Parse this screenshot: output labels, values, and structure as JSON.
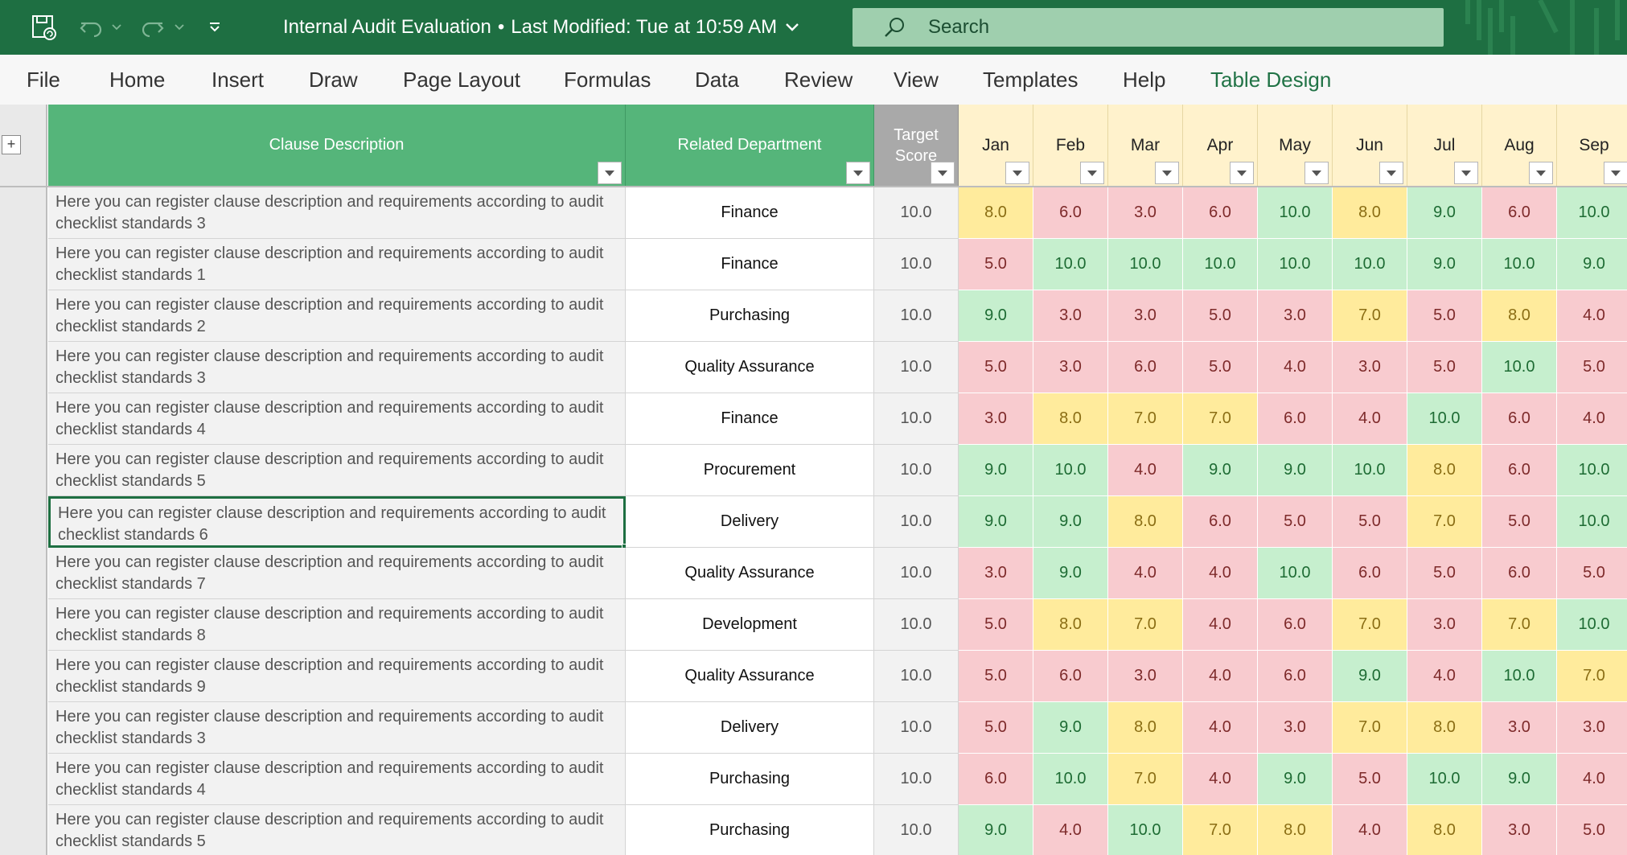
{
  "titlebar": {
    "document_title": "Internal Audit Evaluation",
    "separator": "•",
    "last_modified": "Last Modified: Tue at 10:59 AM",
    "search_placeholder": "Search",
    "icons": [
      "autosave-icon",
      "undo-icon",
      "redo-icon",
      "customize-toolbar-icon",
      "chevron-down-icon",
      "search-icon"
    ]
  },
  "menu": {
    "items": [
      "File",
      "Home",
      "Insert",
      "Draw",
      "Page Layout",
      "Formulas",
      "Data",
      "Review",
      "View",
      "Templates",
      "Help",
      "Table Design"
    ],
    "active": "Table Design"
  },
  "colors": {
    "brand": "#1e6f42",
    "header_green": "#55b57a",
    "header_grey": "#a9a9a9",
    "month_header": "#fff2cc",
    "score_red": "#f8cbcf",
    "score_yellow": "#ffeb9c",
    "score_green": "#c6efce"
  },
  "table": {
    "columns": {
      "description": "Clause Description",
      "department": "Related Department",
      "target": "Target Score",
      "months": [
        "Jan",
        "Feb",
        "Mar",
        "Apr",
        "May",
        "Jun",
        "Jul",
        "Aug",
        "Sep"
      ]
    },
    "expand_button": "+",
    "selected_row": 6,
    "rows": [
      {
        "description": "Here you can register clause description and requirements according to audit checklist standards 3",
        "department": "Finance",
        "target": "10.0",
        "scores": [
          "8.0",
          "6.0",
          "3.0",
          "6.0",
          "10.0",
          "8.0",
          "9.0",
          "6.0",
          "10.0"
        ]
      },
      {
        "description": "Here you can register clause description and requirements according to audit checklist standards 1",
        "department": "Finance",
        "target": "10.0",
        "scores": [
          "5.0",
          "10.0",
          "10.0",
          "10.0",
          "10.0",
          "10.0",
          "9.0",
          "10.0",
          "9.0"
        ]
      },
      {
        "description": "Here you can register clause description and requirements according to audit checklist standards 2",
        "department": "Purchasing",
        "target": "10.0",
        "scores": [
          "9.0",
          "3.0",
          "3.0",
          "5.0",
          "3.0",
          "7.0",
          "5.0",
          "8.0",
          "4.0"
        ]
      },
      {
        "description": "Here you can register clause description and requirements according to audit checklist standards 3",
        "department": "Quality Assurance",
        "target": "10.0",
        "scores": [
          "5.0",
          "3.0",
          "6.0",
          "5.0",
          "4.0",
          "3.0",
          "5.0",
          "10.0",
          "5.0"
        ]
      },
      {
        "description": "Here you can register clause description and requirements according to audit checklist standards 4",
        "department": "Finance",
        "target": "10.0",
        "scores": [
          "3.0",
          "8.0",
          "7.0",
          "7.0",
          "6.0",
          "4.0",
          "10.0",
          "6.0",
          "4.0"
        ]
      },
      {
        "description": "Here you can register clause description and requirements according to audit checklist standards 5",
        "department": "Procurement",
        "target": "10.0",
        "scores": [
          "9.0",
          "10.0",
          "4.0",
          "9.0",
          "9.0",
          "10.0",
          "8.0",
          "6.0",
          "10.0"
        ]
      },
      {
        "description": "Here you can register clause description and requirements according to audit checklist standards 6",
        "department": "Delivery",
        "target": "10.0",
        "scores": [
          "9.0",
          "9.0",
          "8.0",
          "6.0",
          "5.0",
          "5.0",
          "7.0",
          "5.0",
          "10.0"
        ]
      },
      {
        "description": "Here you can register clause description and requirements according to audit checklist standards 7",
        "department": "Quality Assurance",
        "target": "10.0",
        "scores": [
          "3.0",
          "9.0",
          "4.0",
          "4.0",
          "10.0",
          "6.0",
          "5.0",
          "6.0",
          "5.0"
        ]
      },
      {
        "description": "Here you can register clause description and requirements according to audit checklist standards 8",
        "department": "Development",
        "target": "10.0",
        "scores": [
          "5.0",
          "8.0",
          "7.0",
          "4.0",
          "6.0",
          "7.0",
          "3.0",
          "7.0",
          "10.0"
        ]
      },
      {
        "description": "Here you can register clause description and requirements according to audit checklist standards 9",
        "department": "Quality Assurance",
        "target": "10.0",
        "scores": [
          "5.0",
          "6.0",
          "3.0",
          "4.0",
          "6.0",
          "9.0",
          "4.0",
          "10.0",
          "7.0"
        ]
      },
      {
        "description": "Here you can register clause description and requirements according to audit checklist standards 3",
        "department": "Delivery",
        "target": "10.0",
        "scores": [
          "5.0",
          "9.0",
          "8.0",
          "4.0",
          "3.0",
          "7.0",
          "8.0",
          "3.0",
          "3.0"
        ]
      },
      {
        "description": "Here you can register clause description and requirements according to audit checklist standards 4",
        "department": "Purchasing",
        "target": "10.0",
        "scores": [
          "6.0",
          "10.0",
          "7.0",
          "4.0",
          "9.0",
          "5.0",
          "10.0",
          "9.0",
          "4.0"
        ]
      },
      {
        "description": "Here you can register clause description and requirements according to audit checklist standards 5",
        "department": "Purchasing",
        "target": "10.0",
        "scores": [
          "9.0",
          "4.0",
          "10.0",
          "7.0",
          "8.0",
          "4.0",
          "8.0",
          "3.0",
          "5.0"
        ]
      }
    ]
  }
}
